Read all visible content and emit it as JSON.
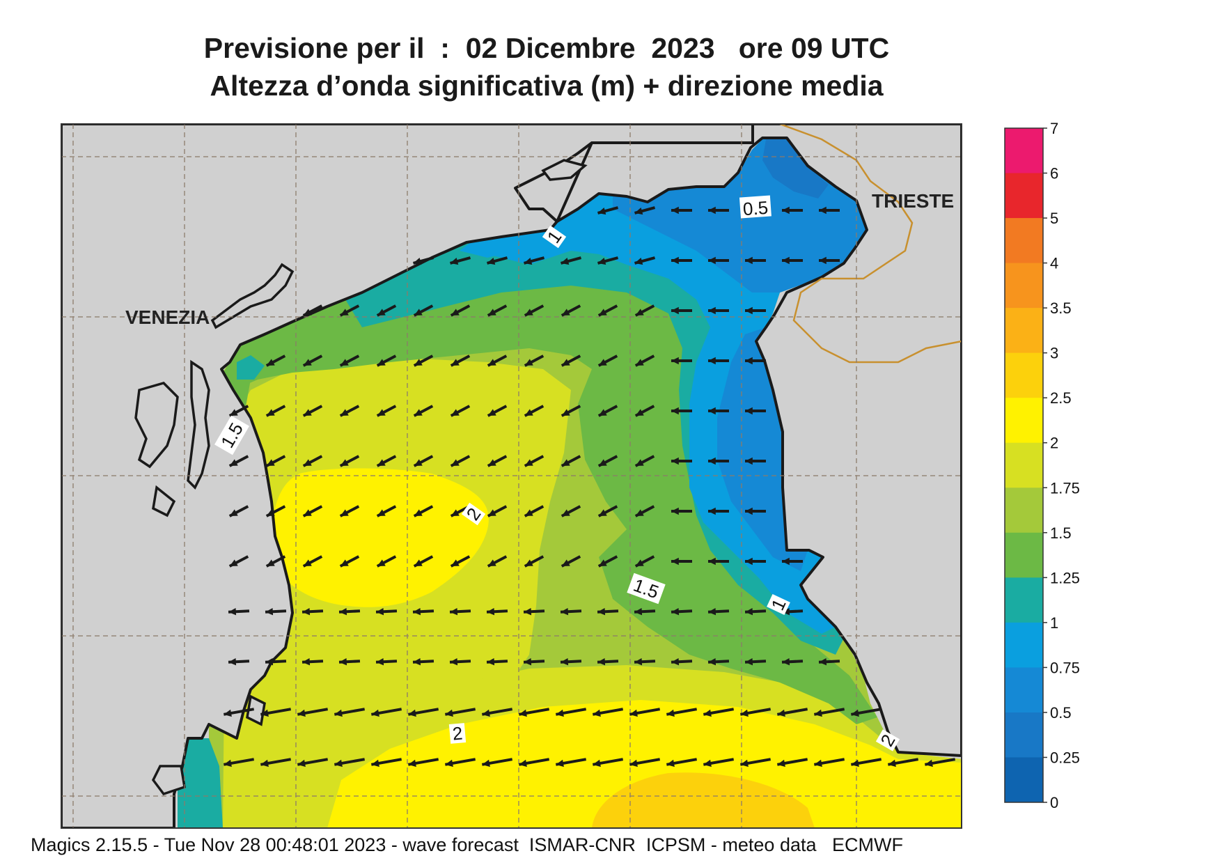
{
  "title_line1": "Previsione per il  :  02 Dicembre  2023   ore 09 UTC",
  "title_line2": "Altezza d’onda significativa (m) + direzione media",
  "footer": "Magics 2.15.5 - Tue Nov 28 00:48:01 2023 - wave forecast  ISMAR-CNR  ICPSM - meteo data   ECMWF",
  "cities": {
    "venezia": "VENEZIA",
    "trieste": "TRIESTE"
  },
  "contour_labels": [
    "0.5",
    "1",
    "1.5",
    "1.5",
    "2",
    "2",
    "1",
    "2"
  ],
  "legend": {
    "ticks": [
      "7",
      "6",
      "5",
      "4",
      "3.5",
      "3",
      "2.5",
      "2",
      "1.75",
      "1.5",
      "1.25",
      "1",
      "0.75",
      "0.5",
      "0.25",
      "0"
    ],
    "colors": [
      "#ec1a6e",
      "#e8262c",
      "#f27a22",
      "#f7941d",
      "#fbb116",
      "#fcd10c",
      "#fff200",
      "#d7e022",
      "#a4c93a",
      "#6cb945",
      "#1aaca2",
      "#0a9fdf",
      "#1589d5",
      "#1878c6",
      "#0e64b0"
    ]
  },
  "colors": {
    "land": "#d0d0d0",
    "coast": "#1a1a1a",
    "border": "#c8902e"
  }
}
